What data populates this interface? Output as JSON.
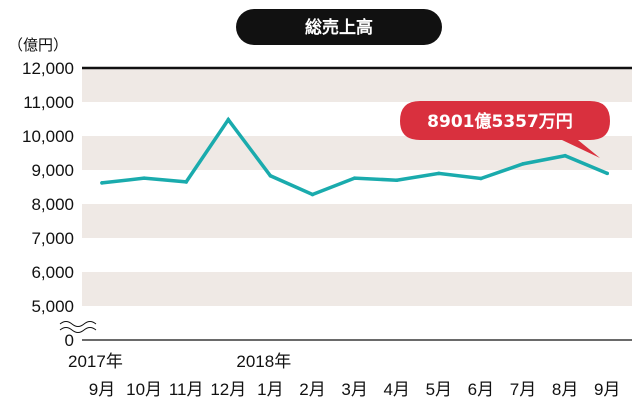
{
  "chart_data": {
    "type": "line",
    "title": "総売上高",
    "ylabel": "（億円）",
    "ylim": [
      5000,
      12000
    ],
    "axis_break": true,
    "y_ticks": [
      "12,000",
      "11,000",
      "10,000",
      "9,000",
      "8,000",
      "7,000",
      "6,000",
      "5,000",
      "0"
    ],
    "x_year_labels": [
      {
        "text": "2017年",
        "index": 0
      },
      {
        "text": "2018年",
        "index": 4
      }
    ],
    "categories": [
      "9月",
      "10月",
      "11月",
      "12月",
      "1月",
      "2月",
      "3月",
      "4月",
      "5月",
      "6月",
      "7月",
      "8月",
      "9月"
    ],
    "series": [
      {
        "values": [
          8620,
          8760,
          8650,
          10480,
          8830,
          8280,
          8760,
          8700,
          8900,
          8750,
          9180,
          9420,
          8901
        ],
        "color": "#1aabad"
      }
    ],
    "annotation": {
      "text": "8901億5357万円",
      "point_index": 12,
      "color": "#d9303e"
    },
    "band_color": "#efe9e5",
    "grid": false
  }
}
